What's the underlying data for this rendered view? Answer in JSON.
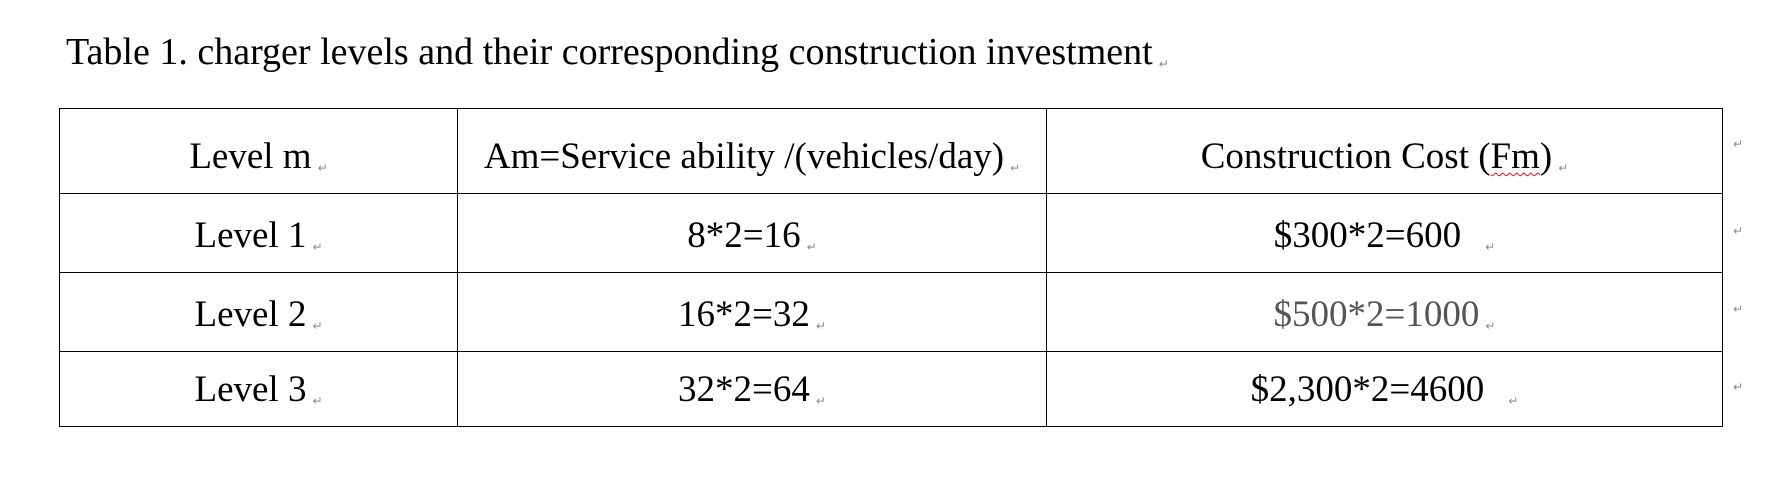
{
  "caption": "Table 1. charger levels and their corresponding construction investment",
  "paragraph_mark": "↵",
  "table": {
    "headers": {
      "level": "Level m",
      "ability": "Am=Service ability /(vehicles/day)",
      "cost_prefix": "Construction Cost (",
      "cost_var": "Fm",
      "cost_suffix": ")"
    },
    "rows": [
      {
        "level": "Level 1",
        "ability": "8*2=16",
        "cost": "$300*2=600"
      },
      {
        "level": "Level 2",
        "ability": "16*2=32",
        "cost": "$500*2=1000"
      },
      {
        "level": "Level 3",
        "ability": "32*2=64",
        "cost": "$2,300*2=4600"
      }
    ]
  },
  "colors": {
    "text": "#000000",
    "grey_text": "#555555",
    "spellcheck_underline": "#dd1111",
    "formatting_mark": "#8a8a8a"
  }
}
